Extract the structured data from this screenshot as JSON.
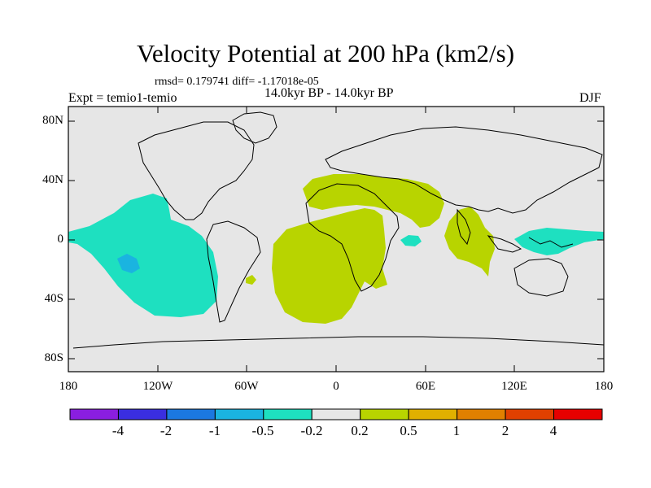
{
  "title": "Velocity Potential at 200 hPa (km2/s)",
  "stats": "rmsd= 0.179741 diff= -1.17018e-05",
  "period": "14.0kyr BP - 14.0kyr BP",
  "experiment": "Expt = temio1-temio",
  "season": "DJF",
  "y_axis_labels": [
    "80N",
    "40N",
    "0",
    "40S",
    "80S"
  ],
  "x_axis_labels": [
    "180",
    "120W",
    "60W",
    "0",
    "60E",
    "120E",
    "180"
  ],
  "colorbar": {
    "labels": [
      "-4",
      "-2",
      "-1",
      "-0.5",
      "-0.2",
      "0.2",
      "0.5",
      "1",
      "2",
      "4"
    ],
    "colors": [
      "#8a1ee0",
      "#3a2ee0",
      "#1b78e0",
      "#1ab4e0",
      "#1ee0c0",
      "#e6e6e6",
      "#b8d400",
      "#e0b000",
      "#e08000",
      "#e04000",
      "#e60000"
    ]
  },
  "map_colors": {
    "background": "#e6e6e6",
    "negative_weak": "#1ee0c0",
    "negative_mid": "#1ab4e0",
    "positive_weak": "#b8d400"
  }
}
